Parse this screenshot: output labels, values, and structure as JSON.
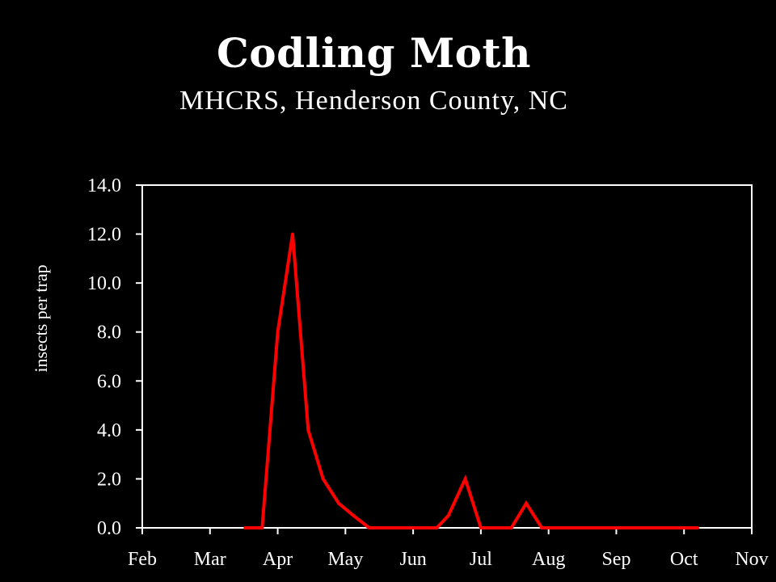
{
  "title": "Codling Moth",
  "subtitle": "MHCRS, Henderson County, NC",
  "chart_data": {
    "type": "line",
    "title": "Codling Moth",
    "subtitle": "MHCRS, Henderson County, NC",
    "xlabel": "",
    "ylabel": "insects per trap",
    "ylim": [
      0,
      14
    ],
    "yticks": [
      "0.0",
      "2.0",
      "4.0",
      "6.0",
      "8.0",
      "10.0",
      "12.0",
      "14.0"
    ],
    "xlim": [
      0,
      9
    ],
    "xticks": [
      "Feb",
      "Mar",
      "Apr",
      "May",
      "Jun",
      "Jul",
      "Aug",
      "Sep",
      "Oct",
      "Nov"
    ],
    "grid": false,
    "line_color": "#ff0000",
    "series": [
      {
        "x": [
          1.52,
          1.77,
          2.0,
          2.22,
          2.45,
          2.67,
          2.9,
          3.12,
          3.35,
          3.57,
          3.8,
          4.05,
          4.35,
          4.52,
          4.77,
          5.0,
          5.45,
          5.67,
          5.9,
          6.15,
          6.45,
          6.75,
          7.15,
          7.55,
          8.0,
          8.2
        ],
        "y": [
          0,
          0,
          8,
          12,
          4,
          2,
          1,
          0.5,
          0,
          0,
          0,
          0,
          0,
          0.5,
          2,
          0,
          0,
          1,
          0,
          0,
          0,
          0,
          0,
          0,
          0,
          0
        ]
      }
    ]
  }
}
